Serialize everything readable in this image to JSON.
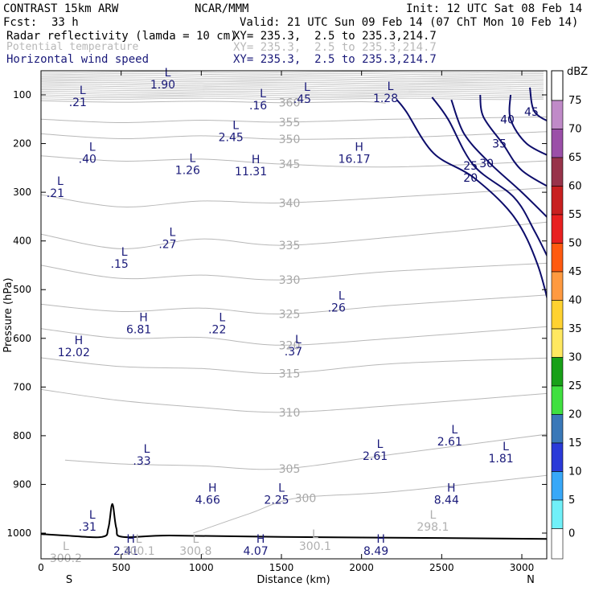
{
  "header": {
    "model": "CONTRAST 15km ARW",
    "center": "NCAR/MMM",
    "init": "Init: 12 UTC Sat 08 Feb 14",
    "fcst_label": "Fcst:",
    "fcst_value": "33 h",
    "valid": "Valid: 21 UTC Sun 09 Feb 14 (07 ChT Mon 10 Feb 14)",
    "fields": [
      {
        "name": "Radar reflectivity (lamda = 10 cm)",
        "xy": "XY= 235.3,  2.5 to 235.3,214.7"
      },
      {
        "name": "Potential temperature",
        "xy": "XY= 235.3,  2.5 to 235.3,214.7"
      },
      {
        "name": "Horizontal wind speed",
        "xy": "XY= 235.3,  2.5 to 235.3,214.7"
      }
    ]
  },
  "colors": {
    "theta": "#b8b8b8",
    "wind": "#0d0d6b",
    "hl": "#1a1a7a",
    "frame": "#000000"
  },
  "chart_data": {
    "type": "cross-section contour",
    "xlabel": "Distance (km)",
    "ylabel": "Pressure (hPa)",
    "xlim": [
      0,
      3200
    ],
    "ylim": [
      1050,
      50
    ],
    "x_ticks": [
      "0",
      "500",
      "1000",
      "1500",
      "2000",
      "2500",
      "3000"
    ],
    "y_ticks": [
      "100",
      "200",
      "300",
      "400",
      "500",
      "600",
      "700",
      "800",
      "900",
      "1000"
    ],
    "endpoints": {
      "left": "S",
      "right": "N"
    },
    "colorbar": {
      "title": "dBZ",
      "ticks": [
        "75",
        "70",
        "65",
        "60",
        "55",
        "50",
        "45",
        "40",
        "35",
        "30",
        "25",
        "20",
        "15",
        "10",
        "5",
        "0"
      ],
      "colors": [
        "#c08ac8",
        "#9b4fa8",
        "#98334a",
        "#c82020",
        "#e82020",
        "#ff5a10",
        "#ff9a40",
        "#ffd230",
        "#ffe860",
        "#18a018",
        "#40e040",
        "#3a78b8",
        "#2a3ad8",
        "#38a8f8",
        "#70f0f8",
        "#ffffff"
      ]
    },
    "theta_contours": [
      {
        "label": "360",
        "pts": [
          [
            0,
            112
          ],
          [
            500,
            115
          ],
          [
            1000,
            113
          ],
          [
            1500,
            116
          ],
          [
            2000,
            114
          ],
          [
            2150,
            117
          ]
        ]
      },
      {
        "label": "355",
        "pts": [
          [
            0,
            150
          ],
          [
            500,
            157
          ],
          [
            1000,
            152
          ],
          [
            1500,
            156
          ],
          [
            2200,
            150
          ],
          [
            3200,
            145
          ]
        ]
      },
      {
        "label": "350",
        "pts": [
          [
            0,
            180
          ],
          [
            500,
            190
          ],
          [
            1000,
            184
          ],
          [
            1500,
            191
          ],
          [
            2200,
            188
          ],
          [
            3200,
            175
          ]
        ]
      },
      {
        "label": "345",
        "pts": [
          [
            0,
            225
          ],
          [
            500,
            236
          ],
          [
            1000,
            232
          ],
          [
            1500,
            242
          ],
          [
            2200,
            248
          ],
          [
            3200,
            235
          ]
        ]
      },
      {
        "label": "340",
        "pts": [
          [
            0,
            305
          ],
          [
            500,
            330
          ],
          [
            1000,
            318
          ],
          [
            1500,
            322
          ],
          [
            2200,
            310
          ],
          [
            3200,
            290
          ]
        ]
      },
      {
        "label": "335",
        "pts": [
          [
            0,
            386
          ],
          [
            500,
            416
          ],
          [
            1000,
            396
          ],
          [
            1500,
            409
          ],
          [
            2200,
            392
          ],
          [
            3200,
            360
          ]
        ]
      },
      {
        "label": "330",
        "pts": [
          [
            0,
            450
          ],
          [
            500,
            477
          ],
          [
            1000,
            470
          ],
          [
            1500,
            480
          ],
          [
            2200,
            462
          ],
          [
            3200,
            445
          ]
        ]
      },
      {
        "label": "325",
        "pts": [
          [
            0,
            530
          ],
          [
            500,
            545
          ],
          [
            1000,
            538
          ],
          [
            1500,
            550
          ],
          [
            2200,
            532
          ],
          [
            3200,
            510
          ]
        ]
      },
      {
        "label": "320",
        "pts": [
          [
            0,
            580
          ],
          [
            500,
            600
          ],
          [
            1000,
            598
          ],
          [
            1500,
            614
          ],
          [
            2200,
            600
          ],
          [
            3200,
            575
          ]
        ]
      },
      {
        "label": "315",
        "pts": [
          [
            0,
            640
          ],
          [
            500,
            658
          ],
          [
            1000,
            662
          ],
          [
            1500,
            672
          ],
          [
            2200,
            652
          ],
          [
            3200,
            640
          ]
        ]
      },
      {
        "label": "310",
        "pts": [
          [
            0,
            705
          ],
          [
            500,
            728
          ],
          [
            1000,
            742
          ],
          [
            1500,
            752
          ],
          [
            2200,
            738
          ],
          [
            3200,
            712
          ]
        ]
      },
      {
        "label": "305",
        "pts": [
          [
            150,
            850
          ],
          [
            500,
            858
          ],
          [
            1000,
            862
          ],
          [
            1500,
            868
          ],
          [
            2200,
            838
          ],
          [
            3200,
            795
          ]
        ]
      },
      {
        "label": "300",
        "pts": [
          [
            950,
            1000
          ],
          [
            1300,
            960
          ],
          [
            1600,
            928
          ],
          [
            2200,
            915
          ],
          [
            3200,
            880
          ]
        ]
      }
    ],
    "wind_contours": [
      {
        "label": "20",
        "pts": [
          [
            3200,
            575
          ],
          [
            3100,
            450
          ],
          [
            2950,
            350
          ],
          [
            2700,
            270
          ],
          [
            2450,
            220
          ],
          [
            2280,
            135
          ],
          [
            2220,
            110
          ]
        ]
      },
      {
        "label": "25",
        "pts": [
          [
            3200,
            460
          ],
          [
            3080,
            380
          ],
          [
            2950,
            310
          ],
          [
            2700,
            245
          ],
          [
            2540,
            150
          ],
          [
            2440,
            105
          ]
        ]
      },
      {
        "label": "30",
        "pts": [
          [
            3200,
            365
          ],
          [
            3000,
            300
          ],
          [
            2800,
            240
          ],
          [
            2640,
            180
          ],
          [
            2560,
            110
          ]
        ]
      },
      {
        "label": "35",
        "pts": [
          [
            3200,
            295
          ],
          [
            3000,
            255
          ],
          [
            2880,
            200
          ],
          [
            2760,
            145
          ],
          [
            2740,
            100
          ]
        ]
      },
      {
        "label": "40",
        "pts": [
          [
            3200,
            230
          ],
          [
            3030,
            200
          ],
          [
            2930,
            150
          ],
          [
            2930,
            100
          ]
        ]
      },
      {
        "label": "45",
        "pts": [
          [
            3200,
            160
          ],
          [
            3080,
            135
          ],
          [
            3050,
            85
          ]
        ]
      }
    ],
    "surface": [
      [
        0,
        1002
      ],
      [
        150,
        1005
      ],
      [
        380,
        1008
      ],
      [
        420,
        990
      ],
      [
        445,
        940
      ],
      [
        470,
        990
      ],
      [
        510,
        1008
      ],
      [
        800,
        1005
      ],
      [
        1500,
        1008
      ],
      [
        2500,
        1010
      ],
      [
        3200,
        1012
      ]
    ],
    "highs_lows": [
      {
        "letter": "L",
        "value": "1.90",
        "x": 790,
        "p": 62
      },
      {
        "letter": "L",
        "value": ".21",
        "x": 260,
        "p": 98
      },
      {
        "letter": "L",
        "value": ".16",
        "x": 1385,
        "p": 105
      },
      {
        "letter": "L",
        "value": ".45",
        "x": 1660,
        "p": 92
      },
      {
        "letter": "L",
        "value": "1.28",
        "x": 2180,
        "p": 90
      },
      {
        "letter": "L",
        "value": "2.45",
        "x": 1215,
        "p": 170
      },
      {
        "letter": "L",
        "value": ".40",
        "x": 320,
        "p": 215
      },
      {
        "letter": "L",
        "value": "1.26",
        "x": 945,
        "p": 238
      },
      {
        "letter": "H",
        "value": "11.31",
        "x": 1340,
        "p": 240
      },
      {
        "letter": "H",
        "value": "16.17",
        "x": 1985,
        "p": 215
      },
      {
        "letter": "L",
        "value": ".21",
        "x": 120,
        "p": 285
      },
      {
        "letter": "L",
        "value": ".27",
        "x": 820,
        "p": 390
      },
      {
        "letter": "L",
        "value": ".15",
        "x": 520,
        "p": 430
      },
      {
        "letter": "L",
        "value": ".26",
        "x": 1875,
        "p": 520
      },
      {
        "letter": "H",
        "value": "6.81",
        "x": 640,
        "p": 565
      },
      {
        "letter": "L",
        "value": ".22",
        "x": 1130,
        "p": 565
      },
      {
        "letter": "H",
        "value": "12.02",
        "x": 235,
        "p": 612
      },
      {
        "letter": "L",
        "value": ".37",
        "x": 1605,
        "p": 610
      },
      {
        "letter": "L",
        "value": "2.61",
        "x": 2580,
        "p": 795
      },
      {
        "letter": "L",
        "value": "2.61",
        "x": 2115,
        "p": 825
      },
      {
        "letter": "L",
        "value": "1.81",
        "x": 2900,
        "p": 830
      },
      {
        "letter": "L",
        "value": ".33",
        "x": 660,
        "p": 835
      },
      {
        "letter": "H",
        "value": "4.66",
        "x": 1070,
        "p": 915
      },
      {
        "letter": "L",
        "value": "2.25",
        "x": 1500,
        "p": 915
      },
      {
        "letter": "H",
        "value": "8.44",
        "x": 2560,
        "p": 915
      },
      {
        "letter": "L",
        "value": ".31",
        "x": 320,
        "p": 970
      },
      {
        "letter": "H",
        "value": "2.41",
        "x": 560,
        "p": 1020
      },
      {
        "letter": "H",
        "value": "4.07",
        "x": 1370,
        "p": 1020
      },
      {
        "letter": "H",
        "value": "8.49",
        "x": 2120,
        "p": 1020
      }
    ],
    "theta_hl": [
      {
        "letter": "L",
        "value": "298.1",
        "x": 2445,
        "p": 970
      },
      {
        "letter": "L",
        "value": "300.1",
        "x": 1710,
        "p": 1010
      },
      {
        "letter": "L",
        "value": "300.8",
        "x": 965,
        "p": 1020
      },
      {
        "letter": "L",
        "value": "300.2",
        "x": 155,
        "p": 1035
      },
      {
        "letter": "L",
        "value": "300.1",
        "x": 610,
        "p": 1020
      }
    ]
  }
}
